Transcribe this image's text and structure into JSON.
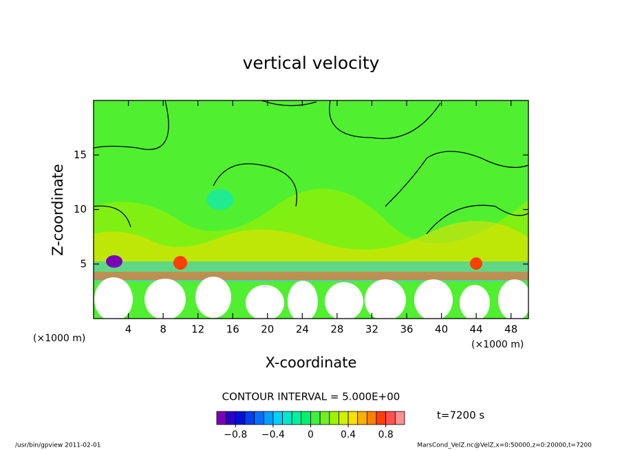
{
  "chart_data": {
    "type": "contour",
    "title": "vertical velocity",
    "xlabel": "X-coordinate",
    "ylabel": "Z-coordinate",
    "xunit": "(×1000 m)",
    "xlim": [
      0,
      50
    ],
    "ylim": [
      0,
      20
    ],
    "xticks": [
      4,
      8,
      12,
      16,
      20,
      24,
      28,
      32,
      36,
      40,
      44,
      48
    ],
    "yticks": [
      5,
      10,
      15
    ],
    "contour_interval": "CONTOUR INTERVAL = 5.000E+00",
    "time_label": "t=7200 s",
    "colorbar": {
      "bins": [
        -1,
        -0.9,
        -0.8,
        -0.7,
        -0.6,
        -0.5,
        -0.4,
        -0.3,
        -0.2,
        -0.1,
        0,
        0.1,
        0.2,
        0.3,
        0.4,
        0.5,
        0.6,
        0.7,
        0.8,
        0.9,
        1
      ],
      "colors": [
        "#7a00b8",
        "#2a00c8",
        "#0010d8",
        "#0040f0",
        "#0070ff",
        "#00a0ff",
        "#00d0ff",
        "#00e8d0",
        "#00f0a0",
        "#00f070",
        "#40f040",
        "#70f020",
        "#a0f000",
        "#d0f000",
        "#f8e000",
        "#ffb000",
        "#ff8000",
        "#ff4000",
        "#ff5050",
        "#ff9090"
      ],
      "ticks": [
        {
          "value": -0.8,
          "label": "−0.8"
        },
        {
          "value": -0.4,
          "label": "−0.4"
        },
        0,
        0.4,
        0.8
      ]
    },
    "footer_left": "/usr/bin/gpview  2011-02-01",
    "footer_right": "MarsCond_VelZ.nc@VelZ,x=0:50000,z=0:20000,t=7200"
  }
}
